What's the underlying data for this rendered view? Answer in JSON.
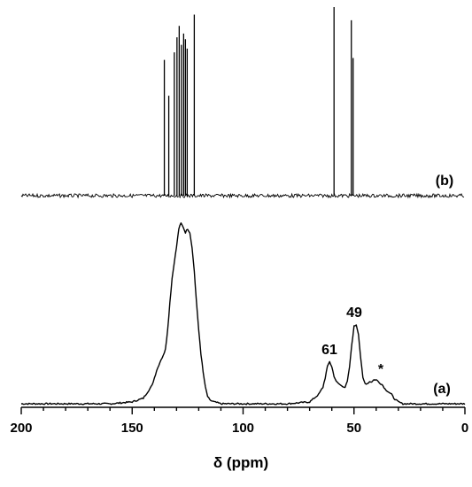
{
  "chart_data": {
    "type": "line",
    "xlabel": "δ (ppm)",
    "xlim": [
      200,
      0
    ],
    "x_reversed": true,
    "x_ticks": [
      200,
      150,
      100,
      50,
      0
    ],
    "x_tick_labels": [
      "200",
      "150",
      "100",
      "50",
      "0"
    ],
    "y_axis_shown": false,
    "grid": false,
    "series": [
      {
        "name": "(a)",
        "style": "broad solid-state spectrum",
        "x": [
          200,
          180,
          160,
          150,
          145,
          141,
          139,
          137,
          136,
          135,
          134,
          133,
          132,
          131,
          130,
          129,
          128,
          127,
          126,
          125,
          124,
          123,
          122,
          121,
          120,
          119,
          118,
          117,
          116,
          115,
          113,
          110,
          100,
          80,
          70,
          66,
          64,
          63,
          62,
          61,
          60,
          59,
          58,
          57,
          56,
          54,
          53,
          52,
          51,
          50,
          49,
          48,
          47,
          46,
          45,
          44,
          43,
          42,
          41,
          40,
          39,
          38,
          37,
          36,
          35,
          34,
          33,
          32,
          31,
          30,
          28,
          25,
          20,
          10,
          0
        ],
        "y": [
          0.0,
          0.0,
          0.0,
          0.01,
          0.03,
          0.1,
          0.18,
          0.24,
          0.26,
          0.3,
          0.4,
          0.55,
          0.68,
          0.77,
          0.85,
          0.95,
          0.98,
          0.96,
          0.93,
          0.95,
          0.93,
          0.85,
          0.72,
          0.55,
          0.4,
          0.27,
          0.17,
          0.09,
          0.04,
          0.02,
          0.01,
          0.0,
          0.0,
          0.0,
          0.01,
          0.05,
          0.09,
          0.14,
          0.2,
          0.23,
          0.2,
          0.15,
          0.12,
          0.11,
          0.1,
          0.09,
          0.12,
          0.2,
          0.32,
          0.42,
          0.43,
          0.38,
          0.25,
          0.14,
          0.11,
          0.11,
          0.12,
          0.12,
          0.13,
          0.13,
          0.12,
          0.11,
          0.1,
          0.08,
          0.07,
          0.06,
          0.05,
          0.03,
          0.02,
          0.01,
          0.0,
          0.0,
          0.0,
          0.0,
          0.0
        ]
      },
      {
        "name": "(b)",
        "style": "stick spectrum",
        "peaks": [
          {
            "x": 135.5,
            "h": 0.72
          },
          {
            "x": 133.5,
            "h": 0.53
          },
          {
            "x": 131.0,
            "h": 0.76
          },
          {
            "x": 129.8,
            "h": 0.84
          },
          {
            "x": 128.8,
            "h": 0.9
          },
          {
            "x": 127.8,
            "h": 0.8
          },
          {
            "x": 126.8,
            "h": 0.86
          },
          {
            "x": 126.0,
            "h": 0.83
          },
          {
            "x": 125.2,
            "h": 0.78
          },
          {
            "x": 122.0,
            "h": 0.96
          },
          {
            "x": 59.0,
            "h": 1.0
          },
          {
            "x": 51.2,
            "h": 0.93
          },
          {
            "x": 50.4,
            "h": 0.73
          }
        ]
      }
    ],
    "annotations": [
      {
        "text": "61",
        "x": 61
      },
      {
        "text": "49",
        "x": 49
      },
      {
        "text": "*",
        "x": 38
      }
    ]
  }
}
